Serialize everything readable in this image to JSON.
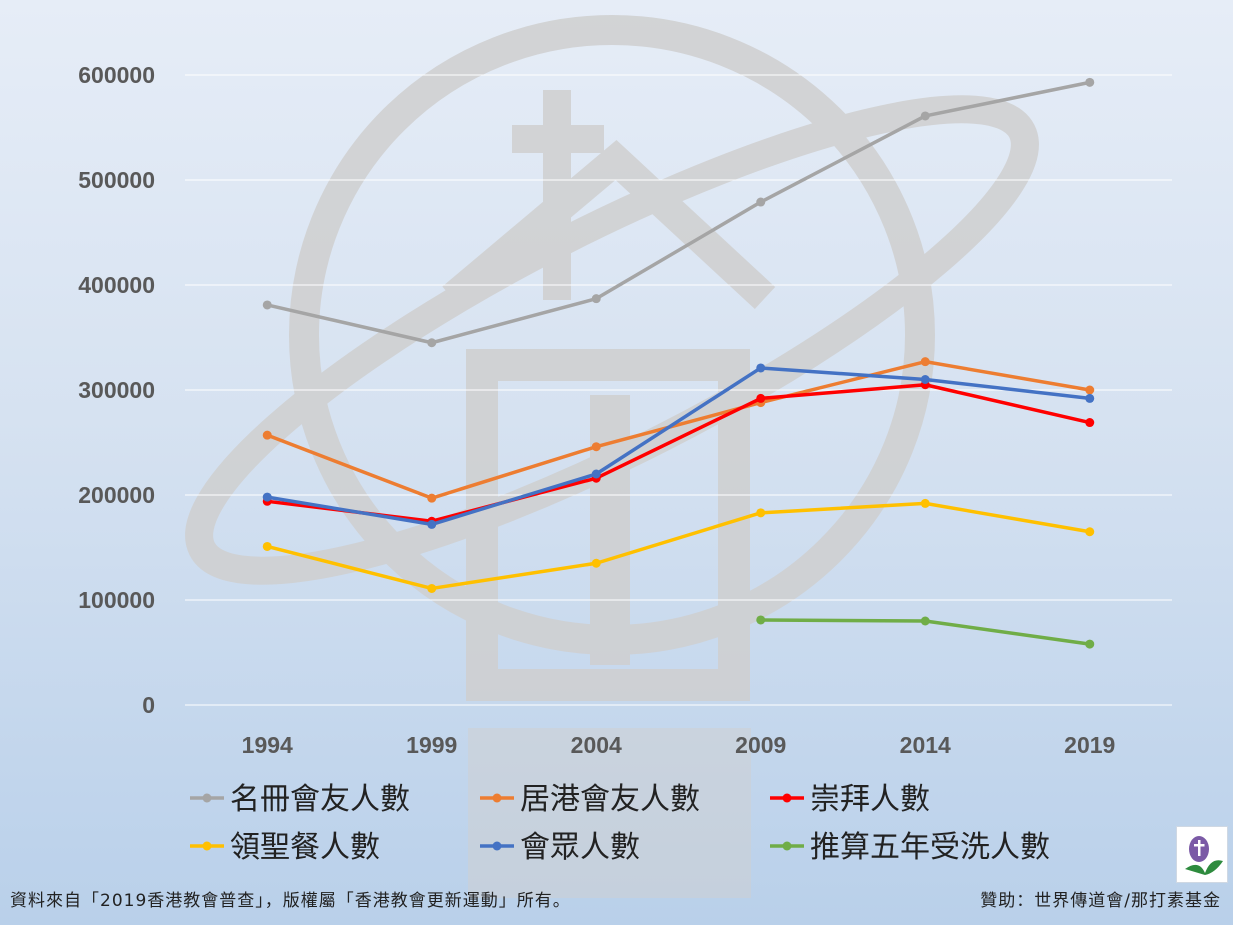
{
  "chart_data": {
    "type": "line",
    "categories": [
      "1994",
      "1999",
      "2004",
      "2009",
      "2014",
      "2019"
    ],
    "ylim": [
      0,
      600000
    ],
    "yticks": [
      0,
      100000,
      200000,
      300000,
      400000,
      500000,
      600000
    ],
    "grid": true,
    "legend_position": "bottom",
    "series": [
      {
        "name": "名冊會友人數",
        "color": "#a5a5a5",
        "values": [
          381000,
          345000,
          387000,
          479000,
          561000,
          593000
        ]
      },
      {
        "name": "居港會友人數",
        "color": "#ed7d31",
        "values": [
          257000,
          197000,
          246000,
          288000,
          327000,
          300000
        ]
      },
      {
        "name": "崇拜人數",
        "color": "#ff0000",
        "values": [
          194000,
          175000,
          216000,
          292000,
          305000,
          269000
        ]
      },
      {
        "name": "領聖餐人數",
        "color": "#ffc000",
        "values": [
          151000,
          111000,
          135000,
          183000,
          192000,
          165000
        ]
      },
      {
        "name": "會眾人數",
        "color": "#4472c4",
        "values": [
          198000,
          172000,
          220000,
          321000,
          310000,
          292000
        ]
      },
      {
        "name": "推算五年受洗人數",
        "color": "#70ad47",
        "values": [
          null,
          null,
          null,
          81000,
          80000,
          58000
        ]
      }
    ]
  },
  "footer": {
    "source_note": "資料來自「2019香港教會普查」，版權屬「香港教會更新運動」所有。",
    "sponsor": "贊助：世界傳道會/那打素基金"
  },
  "colors": {
    "watermark": "#cfcfcf",
    "axis_text": "#595959",
    "gridline": "#ffffff"
  },
  "icons": {
    "watermark": "church-globe-watermark-icon",
    "corner_logo": "cross-leaf-logo-icon"
  }
}
